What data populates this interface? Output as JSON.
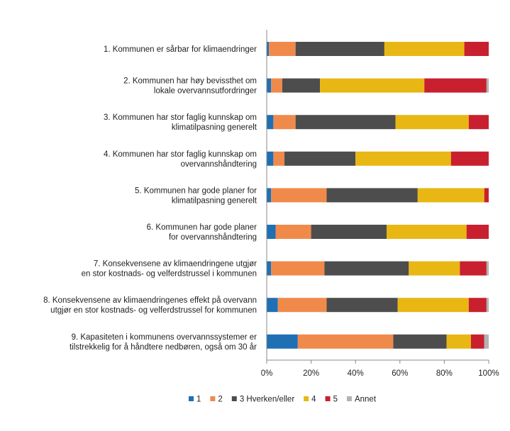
{
  "chart_data": {
    "type": "bar",
    "orientation": "horizontal",
    "stacked": true,
    "percent": true,
    "title": "",
    "xlabel": "",
    "ylabel": "",
    "xlim": [
      0,
      100
    ],
    "ticks": [
      "0%",
      "20%",
      "40%",
      "60%",
      "80%",
      "100%"
    ],
    "tick_values": [
      0,
      20,
      40,
      60,
      80,
      100
    ],
    "grid": false,
    "legend_position": "bottom",
    "categories": [
      [
        "1. Kommunen er sårbar for klimaendringer"
      ],
      [
        "2. Kommunen  har høy bevissthet om",
        "lokale overvannsutfordringer"
      ],
      [
        "3. Kommunen  har stor faglig kunnskap om",
        "klimatilpasning generelt"
      ],
      [
        "4. Kommunen  har stor faglig kunnskap om",
        "overvannshåndtering"
      ],
      [
        "5. Kommunen  har gode planer for",
        "klimatilpasning generelt"
      ],
      [
        "6. Kommunen  har gode planer",
        "for overvannshåndtering"
      ],
      [
        "7. Konsekvensene av klimaendringene utgjør",
        "en stor kostnads- og velferdstrussel i kommunen"
      ],
      [
        "8. Konsekvensene av klimaendringenes effekt på overvann",
        "utgjør en stor kostnads- og velferdstrussel for kommunen"
      ],
      [
        "9. Kapasiteten i kommunens overvannssystemer er",
        "tilstrekkelig for å håndtere nedbøren, også om 30 år"
      ]
    ],
    "series": [
      {
        "name": "1",
        "color": "#1f6fb5",
        "values": [
          1,
          2,
          3,
          3,
          2,
          4,
          2,
          5,
          14
        ]
      },
      {
        "name": "2",
        "color": "#f08a4b",
        "values": [
          12,
          5,
          10,
          5,
          25,
          16,
          24,
          22,
          43
        ]
      },
      {
        "name": "3 Hverken/eller",
        "color": "#4d4d4d",
        "values": [
          40,
          17,
          45,
          32,
          41,
          34,
          38,
          32,
          24
        ]
      },
      {
        "name": "4",
        "color": "#e8b714",
        "values": [
          36,
          47,
          33,
          43,
          30,
          36,
          23,
          32,
          11
        ]
      },
      {
        "name": "5",
        "color": "#c8202e",
        "values": [
          11,
          28,
          9,
          17,
          2,
          10,
          12,
          8,
          6
        ]
      },
      {
        "name": "Annet",
        "color": "#b3b3b3",
        "values": [
          0,
          1,
          0,
          0,
          0,
          0,
          1,
          1,
          2
        ]
      }
    ]
  }
}
